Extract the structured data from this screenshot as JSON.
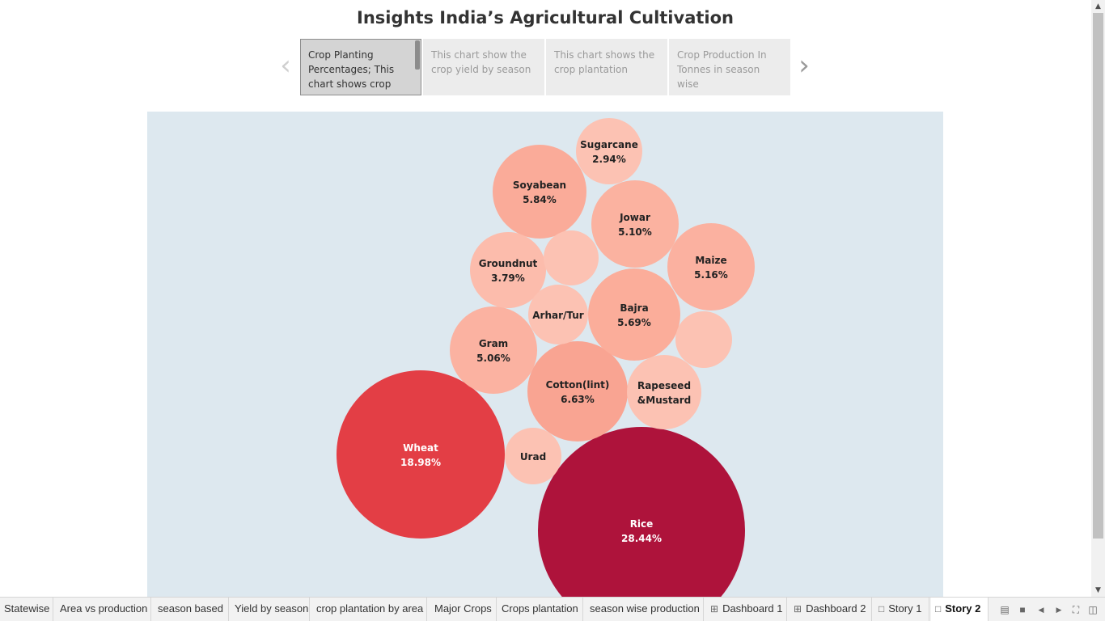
{
  "page_title": "Insights India’s Agricultural Cultivation",
  "story_points": [
    {
      "text": "Crop Planting Percentages; This chart shows crop",
      "active": true
    },
    {
      "text": "This chart show the crop yield by season",
      "active": false
    },
    {
      "text": "This chart shows the crop plantation",
      "active": false
    },
    {
      "text": "Crop Production In Tonnes in season wise",
      "active": false
    }
  ],
  "nav": {
    "prev_icon": "chevron-left-icon",
    "next_icon": "chevron-right-icon"
  },
  "chart_data": {
    "type": "packed-bubble",
    "title": "",
    "color_scale": {
      "low": "#fcc2b3",
      "mid": "#e33e45",
      "high": "#ae133b"
    },
    "label_colors": {
      "dark": "#222222",
      "light": "#ffffff"
    },
    "bubbles": [
      {
        "name": "Rice",
        "value": 28.44,
        "label": "28.44%"
      },
      {
        "name": "Wheat",
        "value": 18.98,
        "label": "18.98%"
      },
      {
        "name": "Cotton(lint)",
        "value": 6.63,
        "label": "6.63%"
      },
      {
        "name": "Soyabean",
        "value": 5.84,
        "label": "5.84%"
      },
      {
        "name": "Bajra",
        "value": 5.69,
        "label": "5.69%"
      },
      {
        "name": "Maize",
        "value": 5.16,
        "label": "5.16%"
      },
      {
        "name": "Jowar",
        "value": 5.1,
        "label": "5.10%"
      },
      {
        "name": "Gram",
        "value": 5.06,
        "label": "5.06%"
      },
      {
        "name": "Rapeseed &Mustard",
        "label_lines": [
          "Rapeseed",
          "&Mustard"
        ],
        "value": null,
        "label": ""
      },
      {
        "name": "Groundnut",
        "value": 3.79,
        "label": "3.79%"
      },
      {
        "name": "Sugarcane",
        "value": 2.94,
        "label": "2.94%"
      },
      {
        "name": "Arhar/Tur",
        "value": null,
        "label": ""
      },
      {
        "name": "Urad",
        "value": null,
        "label": ""
      },
      {
        "name": "",
        "value": null,
        "label": ""
      },
      {
        "name": "",
        "value": null,
        "label": ""
      }
    ]
  },
  "scrollbar": {
    "up_icon": "scroll-up-arrow-icon",
    "down_icon": "scroll-down-arrow-icon"
  },
  "tabs": [
    {
      "label": "Statewise",
      "icon": ""
    },
    {
      "label": "Area vs production",
      "icon": ""
    },
    {
      "label": "season based",
      "icon": ""
    },
    {
      "label": "Yield by season",
      "icon": ""
    },
    {
      "label": "crop plantation by area",
      "icon": ""
    },
    {
      "label": "Major Crops",
      "icon": ""
    },
    {
      "label": "Crops plantation",
      "icon": ""
    },
    {
      "label": "season wise production",
      "icon": ""
    },
    {
      "label": "Dashboard 1",
      "icon": "dashboard-icon"
    },
    {
      "label": "Dashboard 2",
      "icon": "dashboard-icon"
    },
    {
      "label": "Story 1",
      "icon": "story-icon"
    },
    {
      "label": "Story 2",
      "icon": "story-icon",
      "active": true
    }
  ],
  "view_controls": [
    "tab-view-icon",
    "sheet-sorter-icon",
    "previous-sheet-icon",
    "next-sheet-icon",
    "fullscreen-icon",
    "present-icon"
  ]
}
